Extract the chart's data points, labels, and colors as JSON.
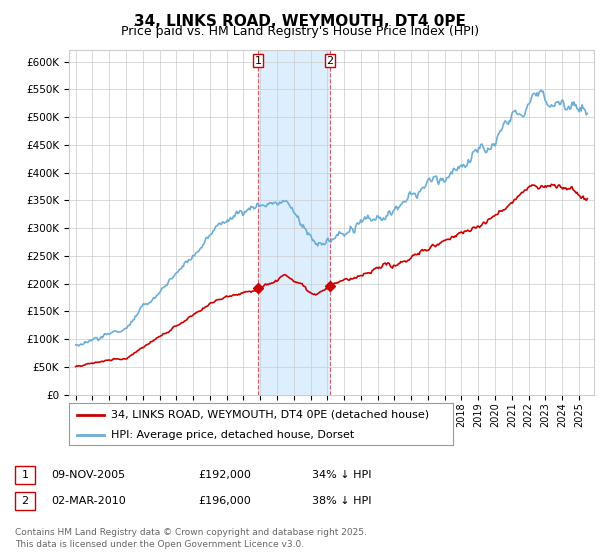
{
  "title": "34, LINKS ROAD, WEYMOUTH, DT4 0PE",
  "subtitle": "Price paid vs. HM Land Registry's House Price Index (HPI)",
  "ylim": [
    0,
    620000
  ],
  "yticks": [
    0,
    50000,
    100000,
    150000,
    200000,
    250000,
    300000,
    350000,
    400000,
    450000,
    500000,
    550000,
    600000
  ],
  "ytick_labels": [
    "£0",
    "£50K",
    "£100K",
    "£150K",
    "£200K",
    "£250K",
    "£300K",
    "£350K",
    "£400K",
    "£450K",
    "£500K",
    "£550K",
    "£600K"
  ],
  "hpi_color": "#6baed6",
  "price_color": "#cc0000",
  "sale1_date": 2005.86,
  "sale1_price": 192000,
  "sale1_label": "1",
  "sale2_date": 2010.17,
  "sale2_price": 196000,
  "sale2_label": "2",
  "shade_color": "#ddeeff",
  "vline_color": "#cc0000",
  "legend_label_price": "34, LINKS ROAD, WEYMOUTH, DT4 0PE (detached house)",
  "legend_label_hpi": "HPI: Average price, detached house, Dorset",
  "table_row1": [
    "1",
    "09-NOV-2005",
    "£192,000",
    "34% ↓ HPI"
  ],
  "table_row2": [
    "2",
    "02-MAR-2010",
    "£196,000",
    "38% ↓ HPI"
  ],
  "footer": "Contains HM Land Registry data © Crown copyright and database right 2025.\nThis data is licensed under the Open Government Licence v3.0.",
  "background_color": "#ffffff",
  "plot_bg_color": "#ffffff",
  "grid_color": "#cccccc",
  "title_fontsize": 11,
  "subtitle_fontsize": 9
}
